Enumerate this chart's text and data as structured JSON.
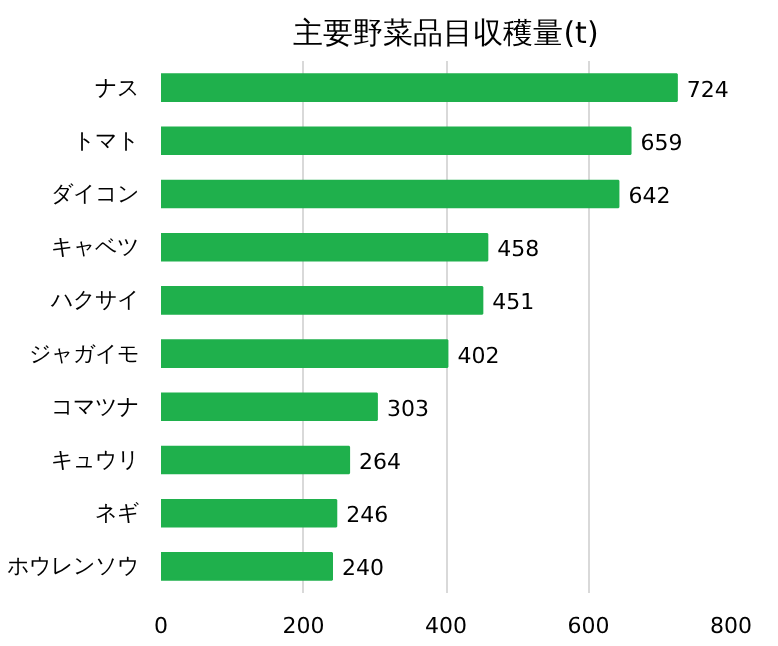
{
  "chart_data": {
    "type": "bar",
    "orientation": "horizontal",
    "title": "主要野菜品目収穫量(t)",
    "categories": [
      "ナス",
      "トマト",
      "ダイコン",
      "キャベツ",
      "ハクサイ",
      "ジャガイモ",
      "コマツナ",
      "キュウリ",
      "ネギ",
      "ホウレンソウ"
    ],
    "values": [
      724,
      659,
      642,
      458,
      451,
      402,
      303,
      264,
      246,
      240
    ],
    "color": "#1fb04c",
    "xlim": [
      0,
      800
    ],
    "xticks": [
      0,
      200,
      400,
      600,
      800
    ],
    "grid": "x",
    "data_labels": true
  }
}
